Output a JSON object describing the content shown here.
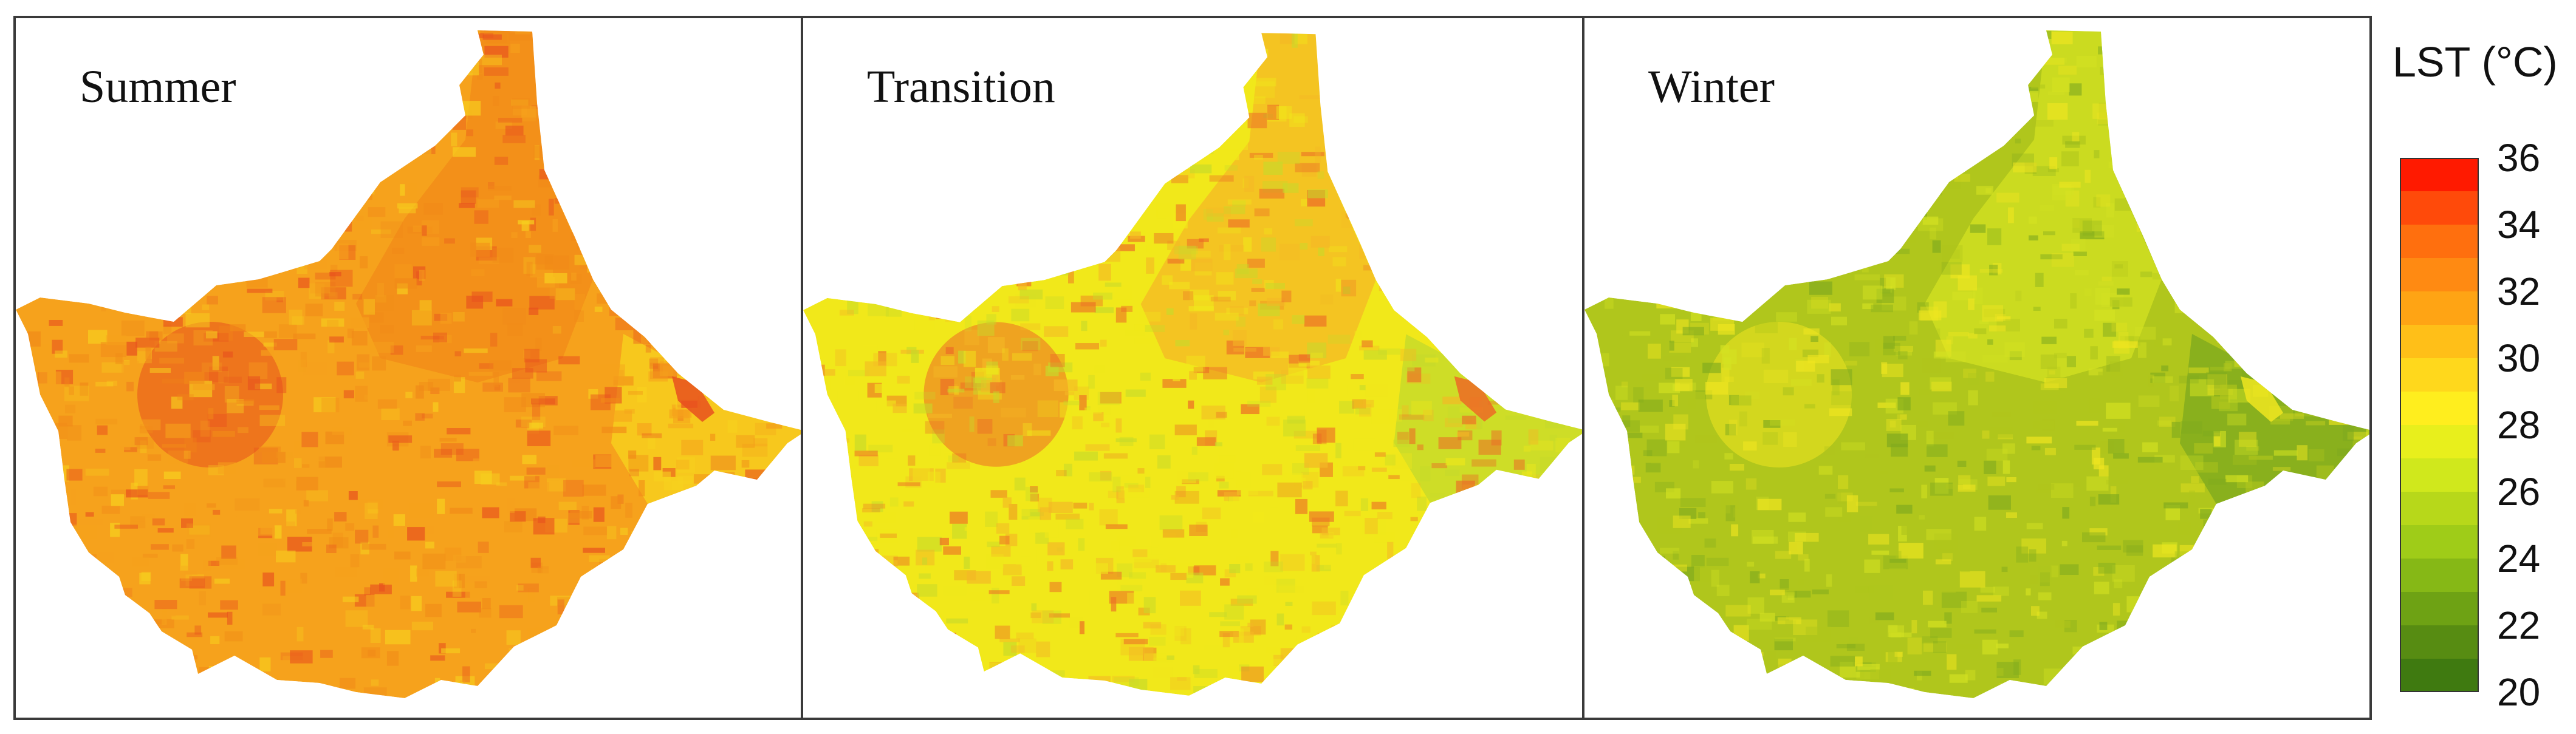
{
  "panels": [
    {
      "title": "Summer",
      "base_color": "#f6a21c",
      "core_color": "#f18a18",
      "hot_color": "#e8501e",
      "edge_color": "#f7d21e"
    },
    {
      "title": "Transition",
      "base_color": "#f1e81a",
      "core_color": "#f4b825",
      "hot_color": "#ec6a26",
      "edge_color": "#c6da2a"
    },
    {
      "title": "Winter",
      "base_color": "#b0c61c",
      "core_color": "#d4e222",
      "hot_color": "#f0e620",
      "edge_color": "#7faa1e"
    }
  ],
  "legend": {
    "title": "LST (°C)",
    "ticks": [
      "36",
      "34",
      "32",
      "30",
      "28",
      "26",
      "24",
      "22",
      "20"
    ],
    "colors": [
      "#ff1a00",
      "#ff4a0a",
      "#ff6f0e",
      "#ff8a12",
      "#ffa414",
      "#ffbf18",
      "#ffd81c",
      "#ffee1e",
      "#e8ef1c",
      "#d0e81c",
      "#b7d81a",
      "#9fcc18",
      "#86b816",
      "#6ea214",
      "#578c12",
      "#3f7a10"
    ]
  }
}
